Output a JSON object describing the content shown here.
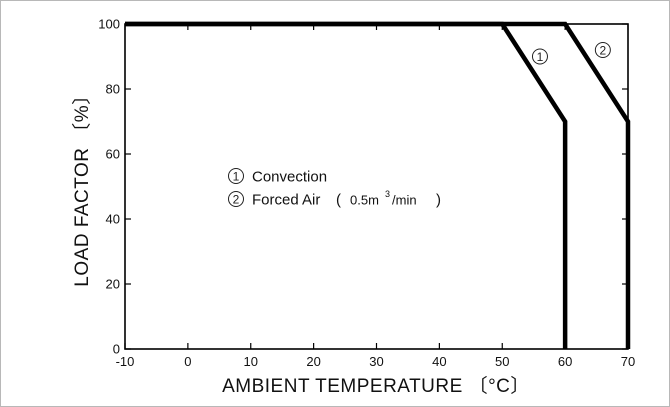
{
  "chart_data": {
    "type": "line",
    "xlabel": "AMBIENT  TEMPERATURE 〔°C〕",
    "ylabel": "LOAD  FACTOR 〔%〕",
    "xlim": [
      -10,
      70
    ],
    "ylim": [
      0,
      100
    ],
    "x_ticks": [
      -10,
      0,
      10,
      20,
      30,
      40,
      50,
      60,
      70
    ],
    "y_ticks": [
      0,
      20,
      40,
      60,
      80,
      100
    ],
    "x_tick_labels": [
      "-10",
      "0",
      "10",
      "20",
      "30",
      "40",
      "50",
      "60",
      "70"
    ],
    "y_tick_labels": [
      "0",
      "20",
      "40",
      "60",
      "80",
      "100"
    ],
    "grid": false,
    "series": [
      {
        "marker": "①",
        "x": [
          -10,
          50,
          60,
          60
        ],
        "y": [
          100,
          100,
          70,
          0
        ]
      },
      {
        "marker": "②",
        "x": [
          -10,
          60,
          70,
          70
        ],
        "y": [
          100,
          100,
          70,
          0
        ]
      }
    ],
    "legend": {
      "placement": "center-left",
      "items": [
        {
          "marker": "①",
          "label": "Convection"
        },
        {
          "marker": "②",
          "label_main": "Forced Air",
          "label_paren_open": "(",
          "label_value": "0.5m",
          "label_sup": "3",
          "label_unit": "/min",
          "label_paren_close": ")"
        }
      ]
    },
    "curve_markers": [
      {
        "text": "1",
        "x": 56,
        "y": 90
      },
      {
        "text": "2",
        "x": 66,
        "y": 92
      }
    ]
  }
}
